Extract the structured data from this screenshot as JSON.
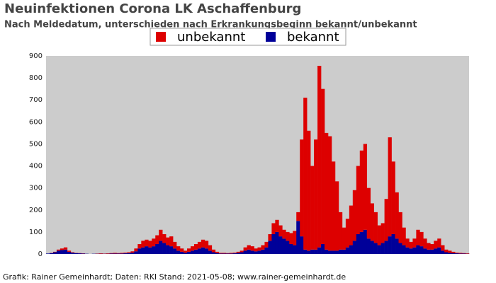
{
  "chart_data": {
    "type": "stacked_bar",
    "title": "Neuinfektionen Corona LK Aschaffenburg",
    "subtitle": "Nach Meldedatum, unterschieden nach Erkrankungsbeginn bekannt/unbekannt",
    "footer": "Grafik: Rainer Gemeinhardt; Daten: RKI Stand: 2021-05-08; www.rainer-gemeinhardt.de",
    "categories": [
      null,
      null,
      null,
      null,
      null,
      null,
      null,
      null,
      null,
      null,
      null,
      null,
      null,
      null,
      null,
      null,
      null,
      null,
      null,
      null,
      null,
      null,
      null,
      null,
      null,
      null,
      null,
      null,
      null,
      null,
      null,
      null,
      null,
      null,
      null,
      null,
      null,
      null,
      null,
      null,
      null,
      null,
      null,
      null,
      null,
      null,
      null,
      null,
      null,
      null,
      null,
      null,
      null,
      null,
      null,
      null,
      null,
      null,
      null,
      null,
      null,
      null,
      null,
      null,
      null,
      null,
      null,
      null,
      null,
      null,
      null,
      null,
      null,
      null,
      null,
      null,
      null,
      null,
      null,
      null,
      null,
      null,
      null,
      null,
      null,
      null,
      null,
      null,
      null,
      null,
      null,
      null,
      null,
      null,
      null,
      null,
      null,
      null,
      null,
      null,
      null,
      null,
      null,
      null,
      null,
      null,
      null,
      null,
      null,
      null,
      null,
      null,
      null,
      null,
      null,
      null,
      null,
      null,
      null,
      null
    ],
    "series": [
      {
        "name": "unbekannt",
        "color": "#dd0000",
        "values": [
          0,
          1,
          2,
          5,
          7,
          10,
          5,
          2,
          1,
          1,
          1,
          0,
          0,
          0,
          1,
          2,
          1,
          2,
          2,
          3,
          2,
          3,
          3,
          4,
          6,
          13,
          20,
          30,
          30,
          30,
          35,
          40,
          50,
          40,
          35,
          45,
          30,
          20,
          15,
          9,
          15,
          20,
          25,
          30,
          35,
          35,
          25,
          12,
          6,
          3,
          3,
          2,
          3,
          3,
          5,
          7,
          15,
          20,
          20,
          13,
          15,
          20,
          25,
          30,
          50,
          55,
          50,
          40,
          40,
          50,
          65,
          40,
          440,
          690,
          545,
          380,
          500,
          825,
          705,
          530,
          520,
          405,
          315,
          170,
          100,
          130,
          180,
          230,
          310,
          370,
          390,
          230,
          170,
          140,
          90,
          90,
          190,
          450,
          330,
          210,
          140,
          80,
          40,
          30,
          40,
          70,
          65,
          45,
          30,
          25,
          35,
          40,
          25,
          12,
          10,
          6,
          3,
          3,
          2,
          2
        ]
      },
      {
        "name": "bekannt",
        "color": "#000099",
        "values": [
          2,
          4,
          8,
          15,
          18,
          20,
          10,
          6,
          4,
          3,
          2,
          1,
          0,
          1,
          1,
          1,
          1,
          1,
          2,
          2,
          2,
          2,
          3,
          4,
          6,
          12,
          25,
          30,
          35,
          30,
          35,
          45,
          60,
          50,
          40,
          35,
          25,
          15,
          10,
          6,
          10,
          15,
          20,
          25,
          30,
          25,
          15,
          8,
          4,
          2,
          2,
          2,
          2,
          3,
          5,
          8,
          15,
          20,
          15,
          12,
          15,
          20,
          30,
          60,
          90,
          100,
          80,
          70,
          60,
          45,
          40,
          150,
          80,
          20,
          15,
          20,
          20,
          30,
          45,
          20,
          15,
          15,
          15,
          20,
          20,
          30,
          40,
          60,
          90,
          100,
          110,
          70,
          60,
          50,
          40,
          50,
          60,
          80,
          90,
          70,
          50,
          40,
          30,
          25,
          30,
          40,
          35,
          25,
          20,
          20,
          25,
          30,
          15,
          8,
          5,
          4,
          3,
          2,
          2,
          1
        ]
      }
    ],
    "ylim": [
      0,
      900
    ],
    "yticks": [
      0,
      100,
      200,
      300,
      400,
      500,
      600,
      700,
      800,
      900
    ],
    "grid": false
  }
}
